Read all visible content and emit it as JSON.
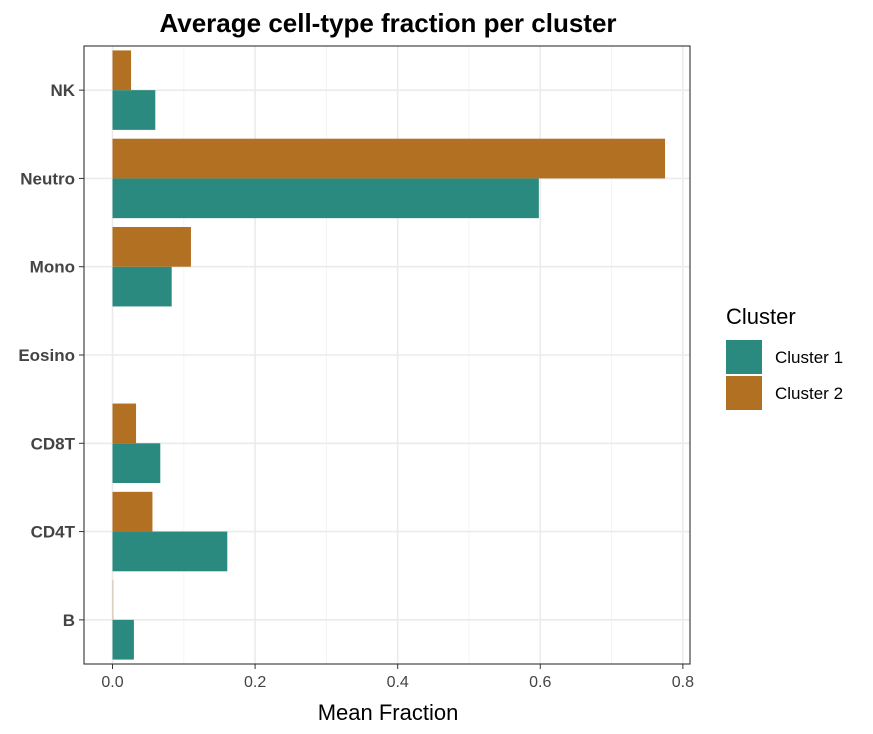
{
  "chart_data": {
    "type": "bar",
    "orientation": "horizontal",
    "title": "Average cell-type fraction per cluster",
    "xlabel": "Mean Fraction",
    "ylabel": "",
    "categories": [
      "B",
      "CD4T",
      "CD8T",
      "Eosino",
      "Mono",
      "Neutro",
      "NK"
    ],
    "series": [
      {
        "name": "Cluster 1",
        "color": "#2a8a7f",
        "values": [
          0.03,
          0.161,
          0.067,
          0.0,
          0.083,
          0.598,
          0.06
        ]
      },
      {
        "name": "Cluster 2",
        "color": "#b27023",
        "values": [
          0.001,
          0.056,
          0.033,
          0.0,
          0.11,
          0.775,
          0.026
        ]
      }
    ],
    "xlim": [
      -0.04,
      0.81
    ],
    "xticks": [
      0.0,
      0.2,
      0.4,
      0.6,
      0.8
    ],
    "xtick_labels": [
      "0.0",
      "0.2",
      "0.4",
      "0.6",
      "0.8"
    ],
    "grid": true,
    "legend": {
      "title": "Cluster",
      "placement": "right"
    }
  }
}
